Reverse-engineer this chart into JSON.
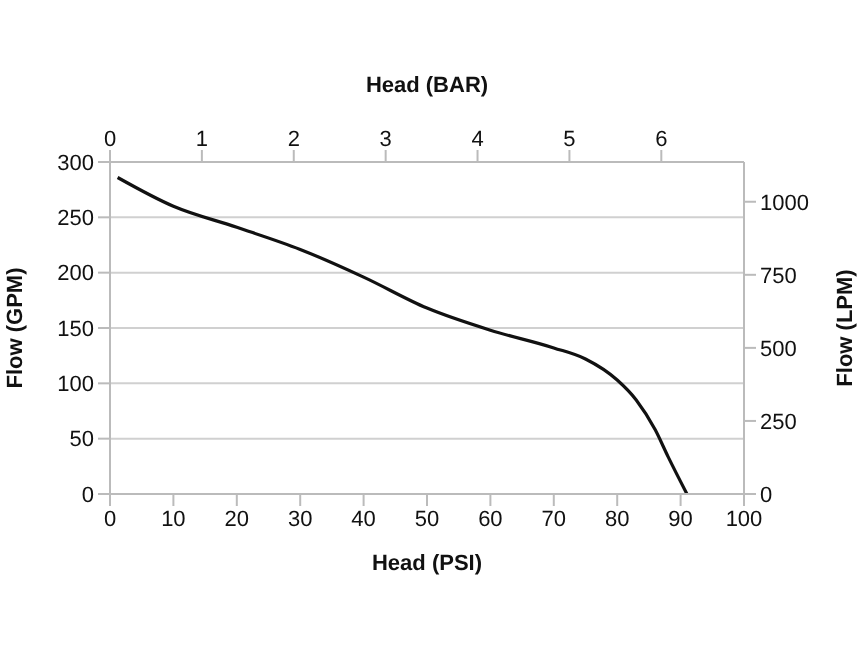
{
  "chart_data": {
    "type": "line",
    "xlabel": "Head (PSI)",
    "ylabel": "Flow (GPM)",
    "x2label": "Head (BAR)",
    "y2label": "Flow (LPM)",
    "x": [
      1.2,
      10,
      20,
      30,
      40,
      50,
      60,
      70,
      75,
      80,
      83,
      86,
      88,
      91
    ],
    "series": [
      {
        "color": "#111111",
        "values": [
          286,
          260,
          241,
          221,
          196,
          168,
          148,
          132,
          122,
          103,
          85,
          58,
          34,
          0
        ]
      }
    ],
    "xlim": [
      0,
      100
    ],
    "xticks": [
      0,
      10,
      20,
      30,
      40,
      50,
      60,
      70,
      80,
      90,
      100
    ],
    "ylim": [
      0,
      300
    ],
    "yticks": [
      0,
      50,
      100,
      150,
      200,
      250,
      300
    ],
    "x2lim": [
      0,
      6.9
    ],
    "x2ticks": [
      0,
      1,
      2,
      3,
      4,
      5,
      6
    ],
    "y2lim": [
      0,
      1136
    ],
    "y2ticks": [
      0,
      250,
      500,
      750,
      1000
    ],
    "grid": "y",
    "legend": false,
    "marker": "none",
    "line_style": "solid"
  }
}
